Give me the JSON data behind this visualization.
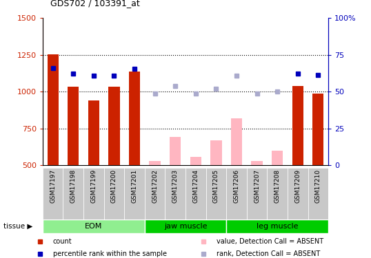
{
  "title": "GDS702 / 103391_at",
  "samples": [
    "GSM17197",
    "GSM17198",
    "GSM17199",
    "GSM17200",
    "GSM17201",
    "GSM17202",
    "GSM17203",
    "GSM17204",
    "GSM17205",
    "GSM17206",
    "GSM17207",
    "GSM17208",
    "GSM17209",
    "GSM17210"
  ],
  "bar_values": [
    1255,
    1033,
    940,
    1033,
    1137,
    526,
    690,
    556,
    668,
    820,
    530,
    600,
    1040,
    988
  ],
  "rank_values": [
    1160,
    1120,
    1110,
    1110,
    1155,
    985,
    1040,
    988,
    1020,
    1110,
    985,
    1000,
    1120,
    1115
  ],
  "present_mask": [
    true,
    true,
    true,
    true,
    true,
    false,
    false,
    false,
    false,
    false,
    false,
    false,
    true,
    true
  ],
  "bar_color_present": "#CC2200",
  "bar_color_absent": "#FFB6C1",
  "rank_color_present": "#0000BB",
  "rank_color_absent": "#AAAACC",
  "ylim_left": [
    500,
    1500
  ],
  "ylim_right": [
    0,
    100
  ],
  "yticks_left": [
    500,
    750,
    1000,
    1250,
    1500
  ],
  "yticks_right": [
    0,
    25,
    50,
    75,
    100
  ],
  "ytick_right_labels": [
    "0",
    "25",
    "50",
    "75",
    "100%"
  ],
  "bar_bottom": 500,
  "eom_color": "#90EE90",
  "jaw_color": "#00CC00",
  "leg_color": "#00CC00",
  "eom_light": "#c8f5c8",
  "jaw_light": "#66ee66",
  "leg_light": "#66ee66",
  "grid_lines": [
    750,
    1000,
    1250
  ],
  "title_str": "GDS702 / 103391_at",
  "tissue_label": "tissue",
  "legend_items": [
    {
      "color": "#CC2200",
      "label": "count"
    },
    {
      "color": "#0000BB",
      "label": "percentile rank within the sample"
    },
    {
      "color": "#FFB6C1",
      "label": "value, Detection Call = ABSENT"
    },
    {
      "color": "#AAAACC",
      "label": "rank, Detection Call = ABSENT"
    }
  ]
}
